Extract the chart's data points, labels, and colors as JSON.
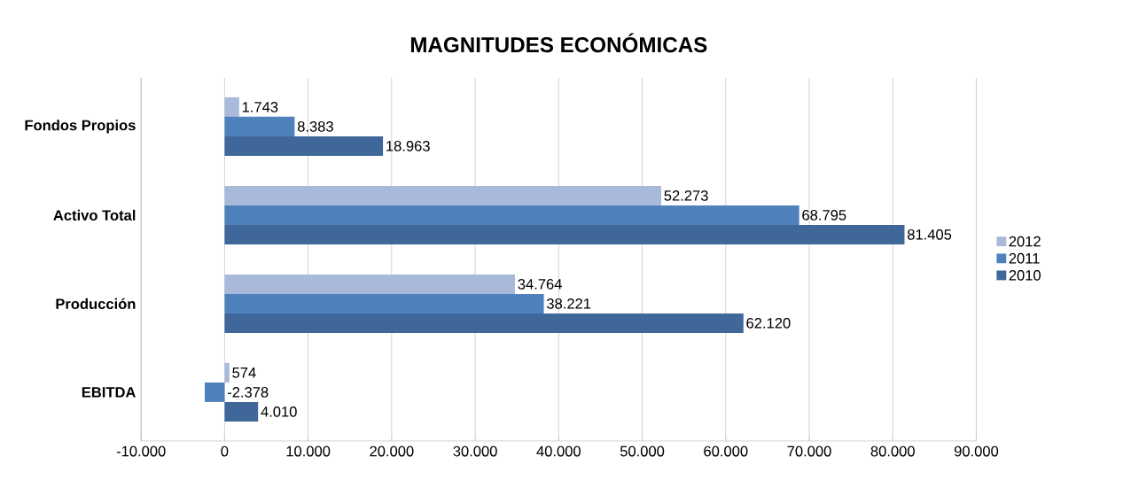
{
  "chart_data": {
    "type": "bar",
    "orientation": "horizontal",
    "title": "MAGNITUDES ECONÓMICAS",
    "categories": [
      "Fondos Propios",
      "Activo Total",
      "Producción",
      "EBITDA"
    ],
    "series": [
      {
        "name": "2012",
        "color": "#a9b9d9",
        "values": [
          1743,
          52273,
          34764,
          574
        ],
        "value_labels": [
          "1.743",
          "52.273",
          "34.764",
          "574"
        ]
      },
      {
        "name": "2011",
        "color": "#4f81bd",
        "values": [
          8383,
          68795,
          38221,
          -2378
        ],
        "value_labels": [
          "8.383",
          "68.795",
          "38.221",
          "-2.378"
        ]
      },
      {
        "name": "2010",
        "color": "#3f679a",
        "values": [
          18963,
          81405,
          62120,
          4010
        ],
        "value_labels": [
          "18.963",
          "81.405",
          "62.120",
          "4.010"
        ]
      }
    ],
    "xlim": [
      -10000,
      90000
    ],
    "xticks": [
      {
        "value": -10000,
        "label": "-10.000"
      },
      0,
      {
        "value": 10000,
        "label": "10.000"
      },
      {
        "value": 20000,
        "label": "20.000"
      },
      {
        "value": 30000,
        "label": "30.000"
      },
      {
        "value": 40000,
        "label": "40.000"
      },
      {
        "value": 50000,
        "label": "50.000"
      },
      {
        "value": 60000,
        "label": "60.000"
      },
      {
        "value": 70000,
        "label": "70.000"
      },
      {
        "value": 80000,
        "label": "80.000"
      },
      {
        "value": 90000,
        "label": "90.000"
      }
    ],
    "grid": "x",
    "legend": "right"
  }
}
